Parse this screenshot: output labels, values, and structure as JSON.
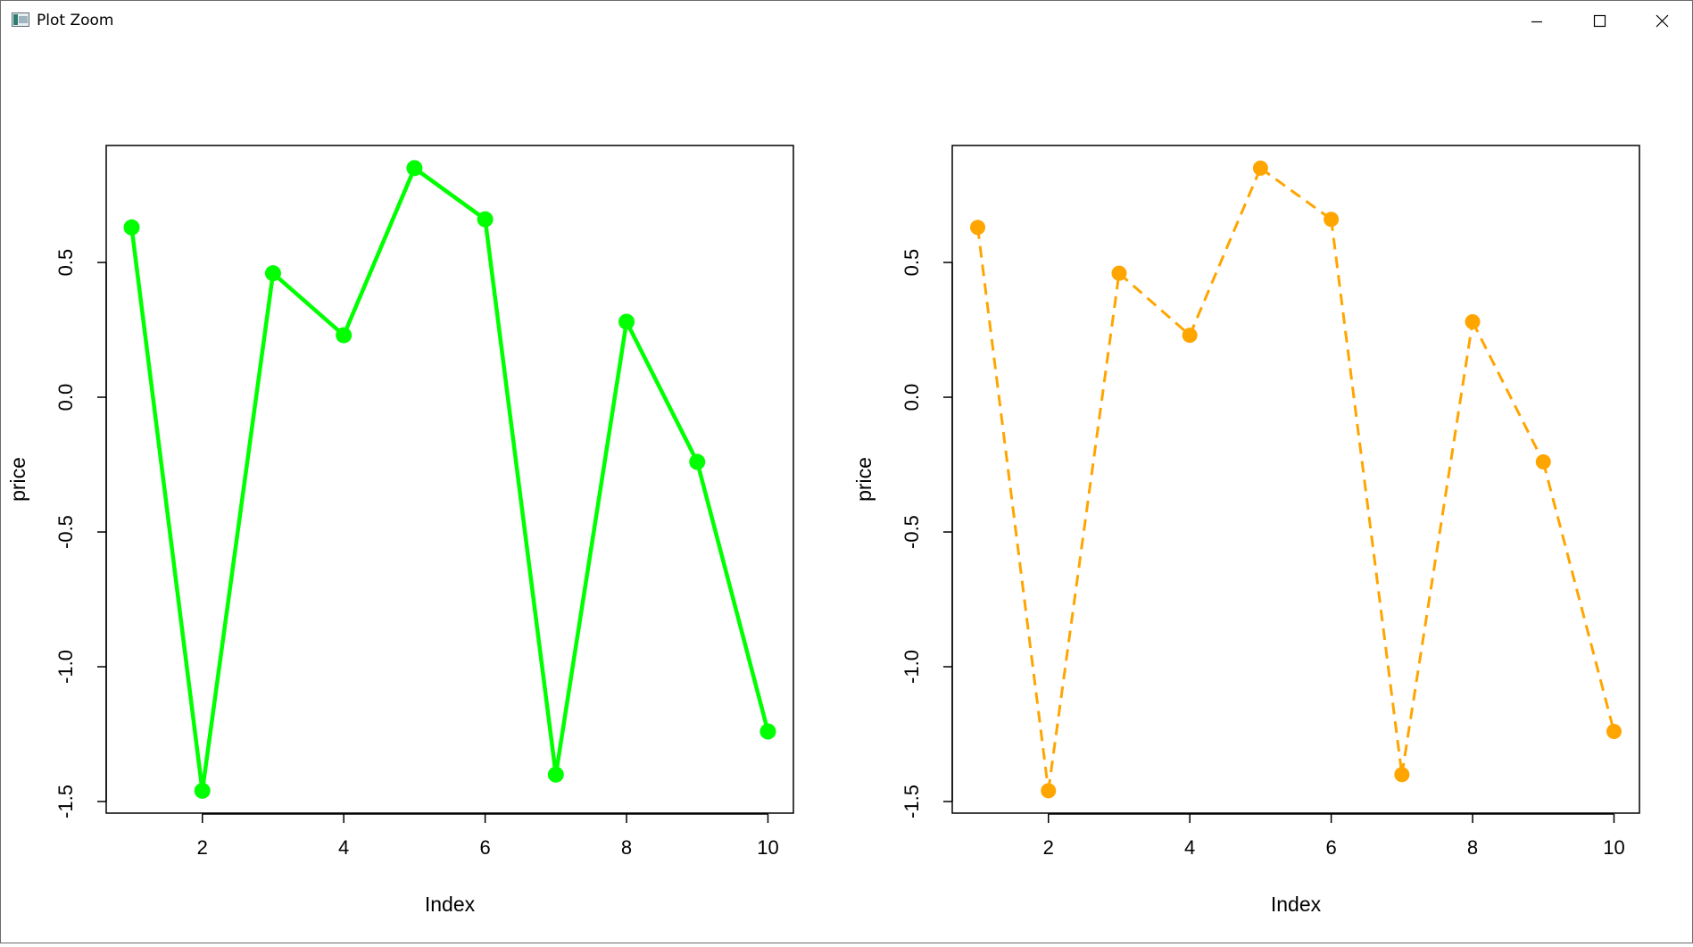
{
  "window": {
    "title": "Plot Zoom",
    "controls": {
      "minimize": "minimize-icon",
      "maximize": "maximize-icon",
      "close": "close-icon"
    }
  },
  "chart_data": [
    {
      "type": "line",
      "xlabel": "Index",
      "ylabel": "price",
      "x": [
        1,
        2,
        3,
        4,
        5,
        6,
        7,
        8,
        9,
        10
      ],
      "series": [
        {
          "values": [
            0.63,
            -1.46,
            0.46,
            0.23,
            0.85,
            0.66,
            -1.4,
            0.28,
            -0.24,
            -1.24
          ],
          "color": "#00ff00",
          "line_style": "solid",
          "marker": "filled-circle"
        }
      ],
      "xticks": [
        2,
        4,
        6,
        8,
        10
      ],
      "xtick_labels": [
        "2",
        "4",
        "6",
        "8",
        "10"
      ],
      "yticks": [
        -1.5,
        -1.0,
        -0.5,
        0.0,
        0.5
      ],
      "ytick_labels": [
        "-1.5",
        "-1.0",
        "-0.5",
        "0.0",
        "0.5"
      ],
      "xlim": [
        0.64,
        10.36
      ],
      "ylim": [
        -1.543,
        0.934
      ],
      "grid": false,
      "legend": "none"
    },
    {
      "type": "line",
      "xlabel": "Index",
      "ylabel": "price",
      "x": [
        1,
        2,
        3,
        4,
        5,
        6,
        7,
        8,
        9,
        10
      ],
      "series": [
        {
          "values": [
            0.63,
            -1.46,
            0.46,
            0.23,
            0.85,
            0.66,
            -1.4,
            0.28,
            -0.24,
            -1.24
          ],
          "color": "#ffa500",
          "line_style": "dashed",
          "marker": "filled-circle"
        }
      ],
      "xticks": [
        2,
        4,
        6,
        8,
        10
      ],
      "xtick_labels": [
        "2",
        "4",
        "6",
        "8",
        "10"
      ],
      "yticks": [
        -1.5,
        -1.0,
        -0.5,
        0.0,
        0.5
      ],
      "ytick_labels": [
        "-1.5",
        "-1.0",
        "-0.5",
        "0.0",
        "0.5"
      ],
      "xlim": [
        0.64,
        10.36
      ],
      "ylim": [
        -1.543,
        0.934
      ],
      "grid": false,
      "legend": "none"
    }
  ]
}
